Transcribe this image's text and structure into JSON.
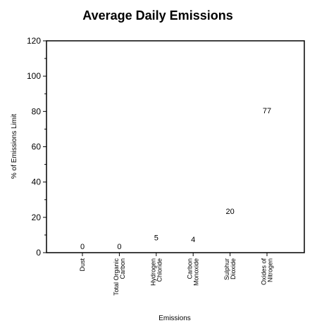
{
  "chart_data": {
    "type": "bar",
    "title": "Average Daily Emissions",
    "xlabel": "Emissions",
    "ylabel": "% of Emissions Limit",
    "categories": [
      [
        "Dust"
      ],
      [
        "Total Organic",
        "Carbon"
      ],
      [
        "Hydrogen",
        "Chloride"
      ],
      [
        "Carbon",
        "Monoxide"
      ],
      [
        "Sulphur",
        "Dioxide"
      ],
      [
        "Oxides of",
        "Nitrogen"
      ]
    ],
    "values": [
      0,
      0,
      5,
      4,
      20,
      77
    ],
    "data_labels": [
      "0",
      "0",
      "5",
      "4",
      "20",
      "77"
    ],
    "ylim": [
      0,
      120
    ],
    "yticks": [
      0,
      20,
      40,
      60,
      80,
      100,
      120
    ],
    "limit_line": 100,
    "grid": true,
    "colors": {
      "bar_light": "#f9c49a",
      "bar_dark": "#a0684a",
      "limit_line": "#b03a1a",
      "grid": "#c8c8c8",
      "axis": "#000000"
    }
  }
}
